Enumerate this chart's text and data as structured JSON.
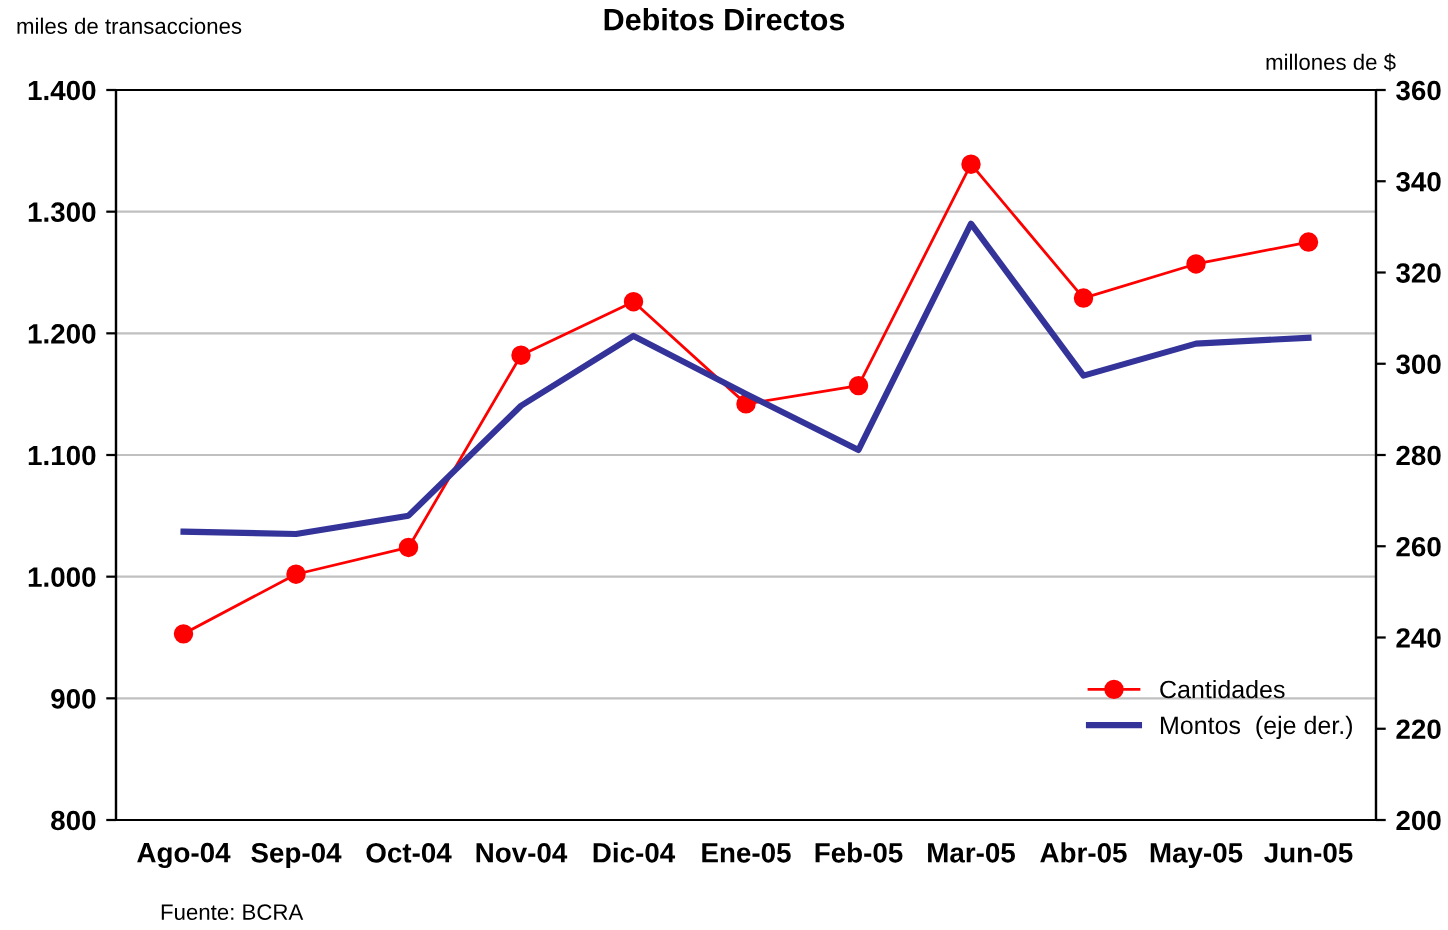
{
  "chart_data": {
    "type": "line",
    "title": "Debitos Directos",
    "ylabel": "miles de transacciones",
    "y2label": "millones de $",
    "categories": [
      "Ago-04",
      "Sep-04",
      "Oct-04",
      "Nov-04",
      "Dic-04",
      "Ene-05",
      "Feb-05",
      "Mar-05",
      "Abr-05",
      "May-05",
      "Jun-05"
    ],
    "series": [
      {
        "name": "Cantidades",
        "color": "#ff0000",
        "marker": "circle",
        "values": [
          953,
          1002,
          1024,
          1182,
          1226,
          1142,
          1157,
          1339,
          1229,
          1257,
          1275
        ]
      },
      {
        "name": "Montos  (eje der.)",
        "color": "#333399",
        "axis": "y2",
        "marker": "none",
        "values": [
          263.2,
          262.7,
          266.7,
          290.8,
          306.1,
          293.4,
          281.1,
          330.7,
          297.4,
          304.4,
          305.7
        ]
      }
    ],
    "ylim": [
      800,
      1400
    ],
    "yticks": [
      {
        "value": 800,
        "label": "800"
      },
      {
        "value": 900,
        "label": "900"
      },
      {
        "value": 1000,
        "label": "1.000"
      },
      {
        "value": 1100,
        "label": "1.100"
      },
      {
        "value": 1200,
        "label": "1.200"
      },
      {
        "value": 1300,
        "label": "1.300"
      },
      {
        "value": 1400,
        "label": "1.400"
      }
    ],
    "y2lim": [
      200,
      360
    ],
    "y2ticks": [
      200,
      220,
      240,
      260,
      280,
      300,
      320,
      340,
      360
    ],
    "grid": "y",
    "legend": "bottom right",
    "annotations": [
      "Fuente: BCRA"
    ]
  }
}
